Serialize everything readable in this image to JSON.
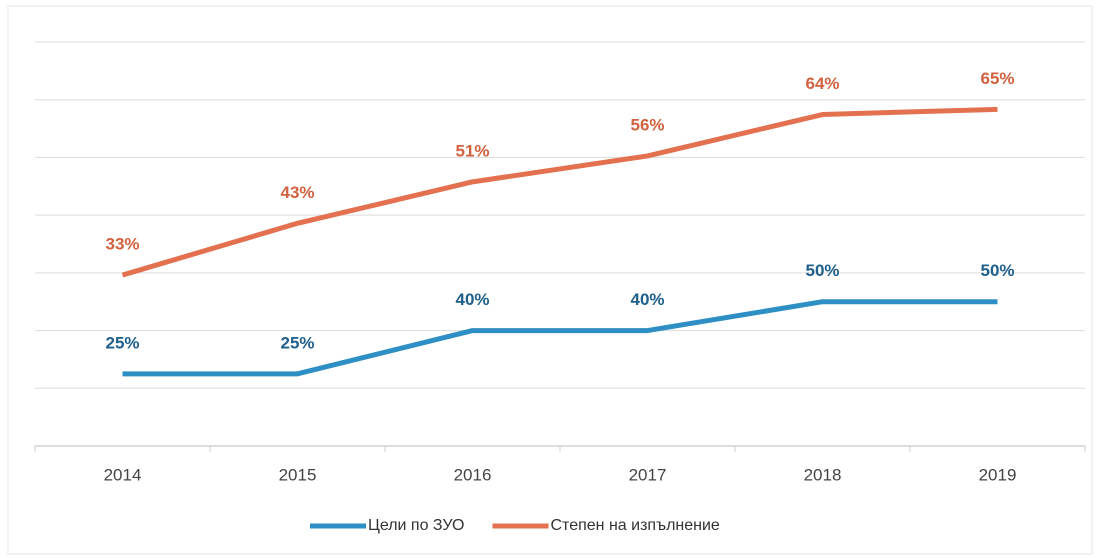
{
  "chart_data": {
    "type": "line",
    "categories": [
      "2014",
      "2015",
      "2016",
      "2017",
      "2018",
      "2019"
    ],
    "series": [
      {
        "name": "Цели по ЗУО",
        "color": "#2e8fc4",
        "label_color": "#1f5f8b",
        "values": [
          25,
          25,
          40,
          40,
          50,
          50
        ],
        "value_labels": [
          "25%",
          "25%",
          "40%",
          "40%",
          "50%",
          "50%"
        ]
      },
      {
        "name": "Степен на изпълнение",
        "color": "#e3714f",
        "label_color": "#d2613f",
        "axis": "y2",
        "values": [
          33,
          43,
          51,
          56,
          64,
          65
        ],
        "value_labels": [
          "33%",
          "43%",
          "51%",
          "56%",
          "64%",
          "65%"
        ]
      }
    ],
    "ylim": [
      0,
      140
    ],
    "yticks": [
      0,
      20,
      40,
      60,
      80,
      100,
      120,
      140
    ],
    "y2lim": [
      0,
      78
    ],
    "grid": true,
    "legend": "bottom"
  }
}
